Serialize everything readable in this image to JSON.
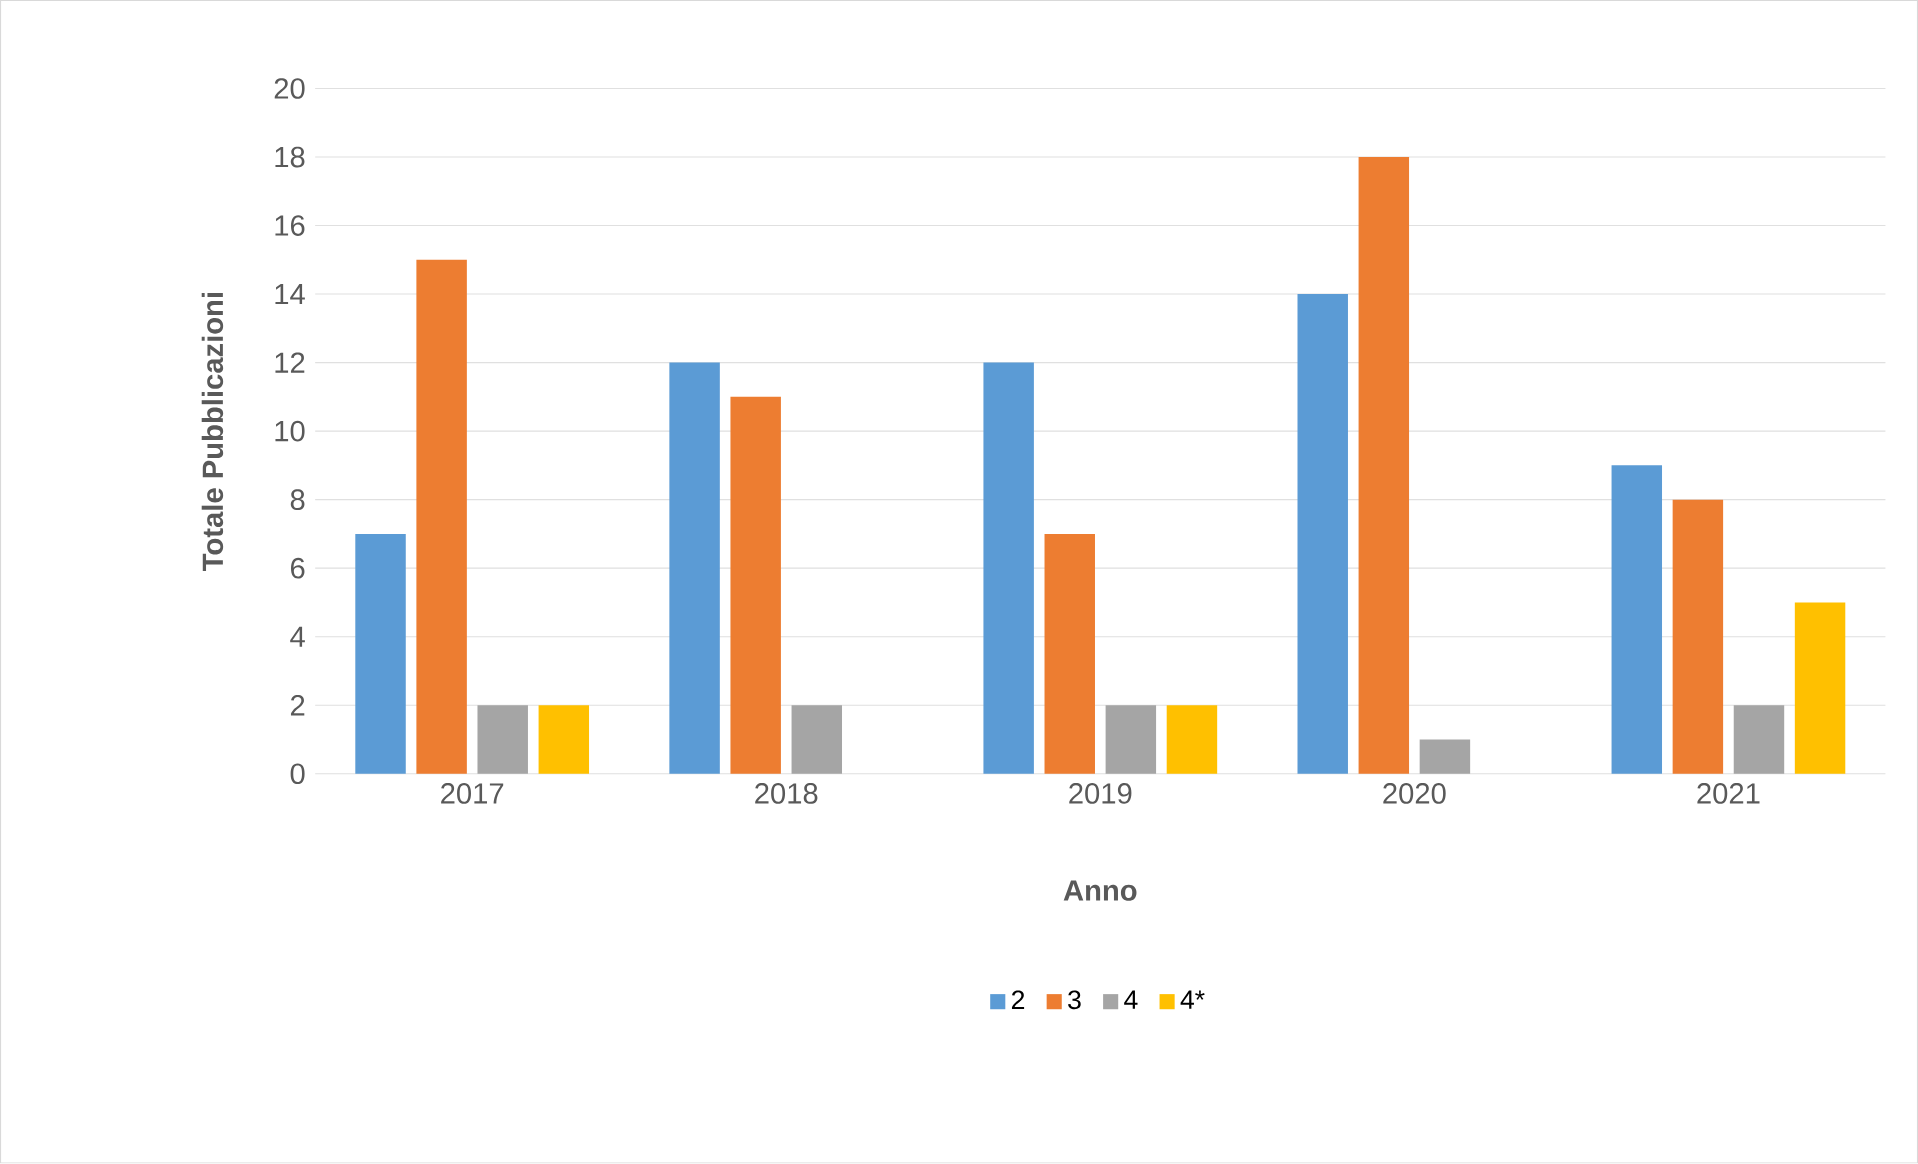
{
  "chart_data": {
    "type": "bar",
    "xlabel": "Anno",
    "ylabel": "Totale Pubblicazioni",
    "categories": [
      "2017",
      "2018",
      "2019",
      "2020",
      "2021"
    ],
    "series": [
      {
        "name": "2",
        "color": "#5b9bd5",
        "values": [
          7,
          12,
          12,
          14,
          9
        ]
      },
      {
        "name": "3",
        "color": "#ed7d31",
        "values": [
          15,
          11,
          7,
          18,
          8
        ]
      },
      {
        "name": "4",
        "color": "#a5a5a5",
        "values": [
          2,
          2,
          2,
          1,
          2
        ]
      },
      {
        "name": "4*",
        "color": "#ffc000",
        "values": [
          2,
          null,
          2,
          null,
          5
        ]
      }
    ],
    "ylim": [
      0,
      20
    ],
    "yticks": [
      0,
      2,
      4,
      6,
      8,
      10,
      12,
      14,
      16,
      18,
      20
    ],
    "grid": "y",
    "legend": "bottom"
  }
}
